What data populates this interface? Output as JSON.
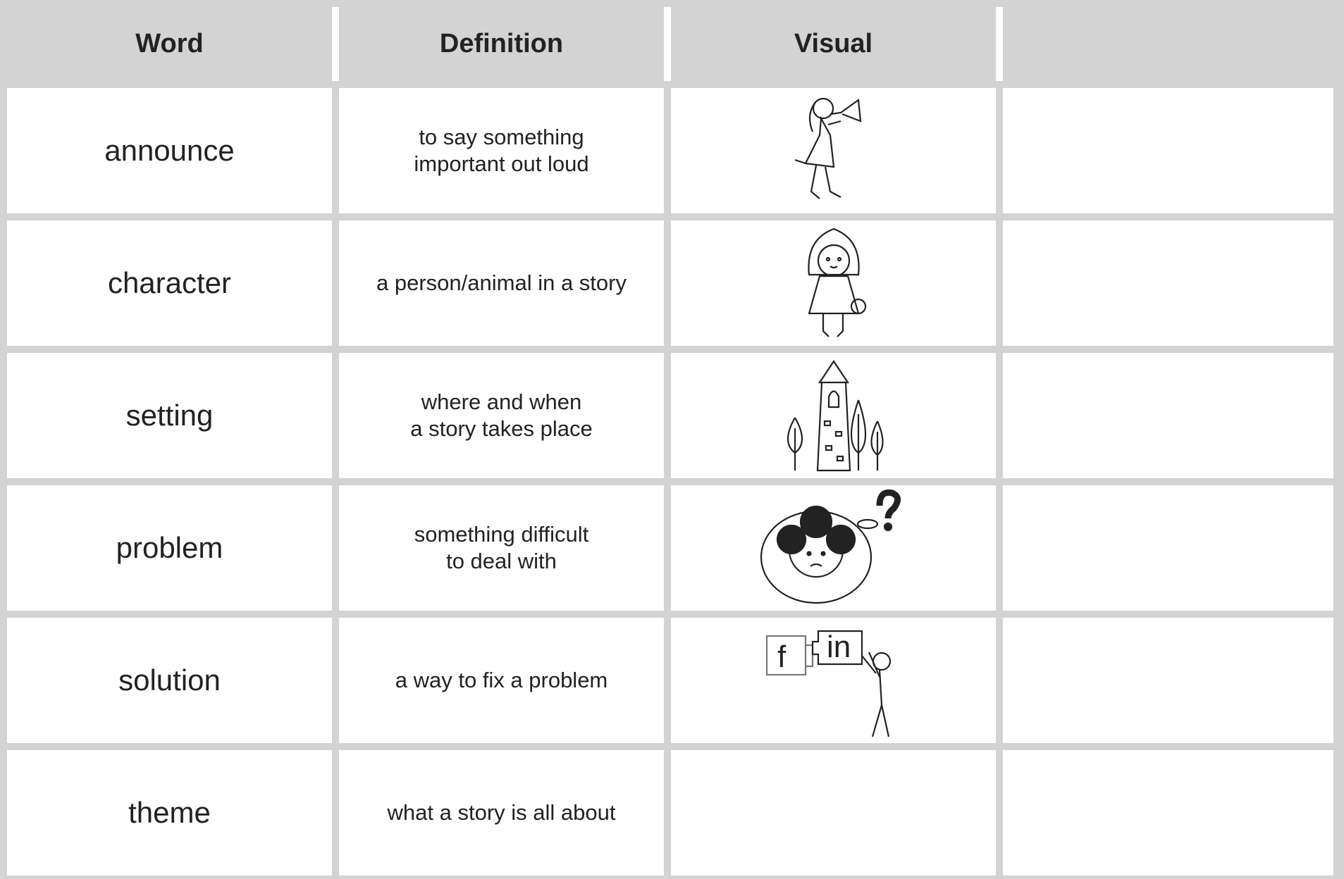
{
  "table": {
    "header": [
      "Word",
      "Definition",
      "Visual"
    ],
    "rows": [
      {
        "word": "announce",
        "definition": [
          "to say something",
          "important out loud"
        ]
      },
      {
        "word": "character",
        "definition": [
          "a person/animal in a story"
        ]
      },
      {
        "word": "setting",
        "definition": [
          "where and when",
          "a story takes place"
        ]
      },
      {
        "word": "problem",
        "definition": [
          "something difficult",
          "to deal with"
        ]
      },
      {
        "word": "solution",
        "definition": [
          "a way to fix a problem"
        ],
        "visual_text": [
          "f",
          "in"
        ]
      },
      {
        "word": "theme",
        "definition": [
          "what a story is all about"
        ]
      }
    ]
  }
}
